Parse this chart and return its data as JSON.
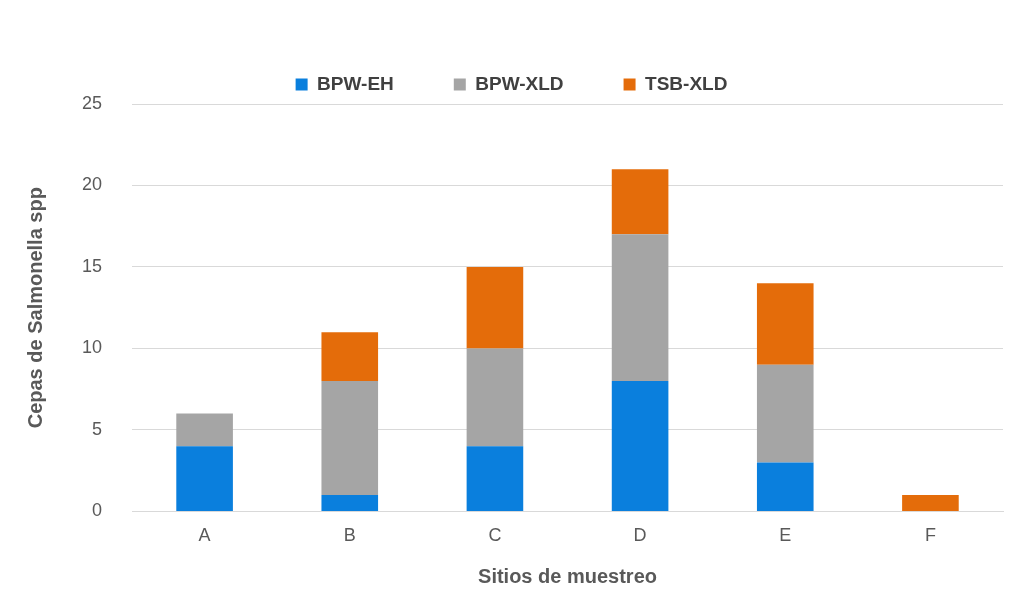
{
  "chart_data": {
    "type": "bar",
    "stacked": true,
    "xlabel": "Sitios de muestreo",
    "ylabel": "Cepas de Salmonella spp",
    "categories": [
      "A",
      "B",
      "C",
      "D",
      "E",
      "F"
    ],
    "series": [
      {
        "name": "BPW-EH",
        "color": "#0a7fdd",
        "values": [
          4,
          1,
          4,
          8,
          3,
          0
        ]
      },
      {
        "name": "BPW-XLD",
        "color": "#a5a5a5",
        "values": [
          2,
          7,
          6,
          9,
          6,
          0
        ]
      },
      {
        "name": "TSB-XLD",
        "color": "#e46c0a",
        "values": [
          0,
          3,
          5,
          4,
          5,
          1
        ]
      }
    ],
    "ylim": [
      0,
      25
    ],
    "yticks": [
      0,
      5,
      10,
      15,
      20,
      25
    ],
    "grid": "y",
    "legend": "top"
  }
}
